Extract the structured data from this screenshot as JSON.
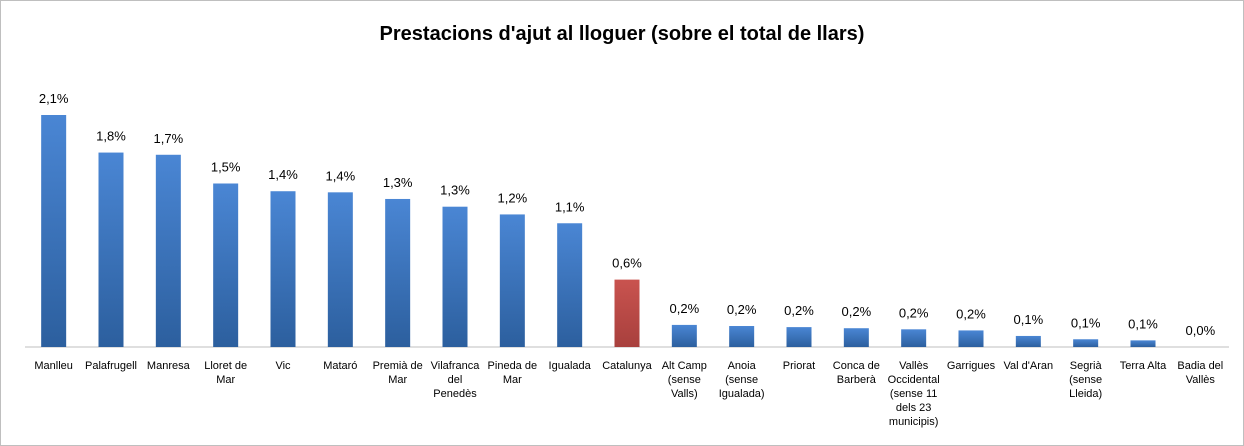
{
  "chart_data": {
    "type": "bar",
    "title": "Prestacions d'ajut al lloguer (sobre el total de llars)",
    "categories": [
      "Manlleu",
      "Palafrugell",
      "Manresa",
      "Lloret de Mar",
      "Vic",
      "Mataró",
      "Premià de Mar",
      "Vilafranca del Penedès",
      "Pineda de Mar",
      "Igualada",
      "Catalunya",
      "Alt Camp (sense Valls)",
      "Anoia (sense Igualada)",
      "Priorat",
      "Conca de Barberà",
      "Vallès Occidental (sense 11 dels 23 municipis)",
      "Garrigues",
      "Val d'Aran",
      "Segrià (sense Lleida)",
      "Terra Alta",
      "Badia del Vallès"
    ],
    "values": [
      2.1,
      1.76,
      1.74,
      1.48,
      1.41,
      1.4,
      1.34,
      1.27,
      1.2,
      1.12,
      0.61,
      0.2,
      0.19,
      0.18,
      0.17,
      0.16,
      0.15,
      0.1,
      0.07,
      0.06,
      0
    ],
    "value_labels": [
      "2,1%",
      "1,8%",
      "1,7%",
      "1,5%",
      "1,4%",
      "1,4%",
      "1,3%",
      "1,3%",
      "1,2%",
      "1,1%",
      "0,6%",
      "0,2%",
      "0,2%",
      "0,2%",
      "0,2%",
      "0,2%",
      "0,2%",
      "0,1%",
      "0,1%",
      "0,1%",
      "0,0%"
    ],
    "colors": [
      "#3b78c6",
      "#3b78c6",
      "#3b78c6",
      "#3b78c6",
      "#3b78c6",
      "#3b78c6",
      "#3b78c6",
      "#3b78c6",
      "#3b78c6",
      "#3b78c6",
      "#c0504d",
      "#3b78c6",
      "#3b78c6",
      "#3b78c6",
      "#3b78c6",
      "#3b78c6",
      "#3b78c6",
      "#3b78c6",
      "#3b78c6",
      "#3b78c6",
      "#3b78c6"
    ]
  }
}
